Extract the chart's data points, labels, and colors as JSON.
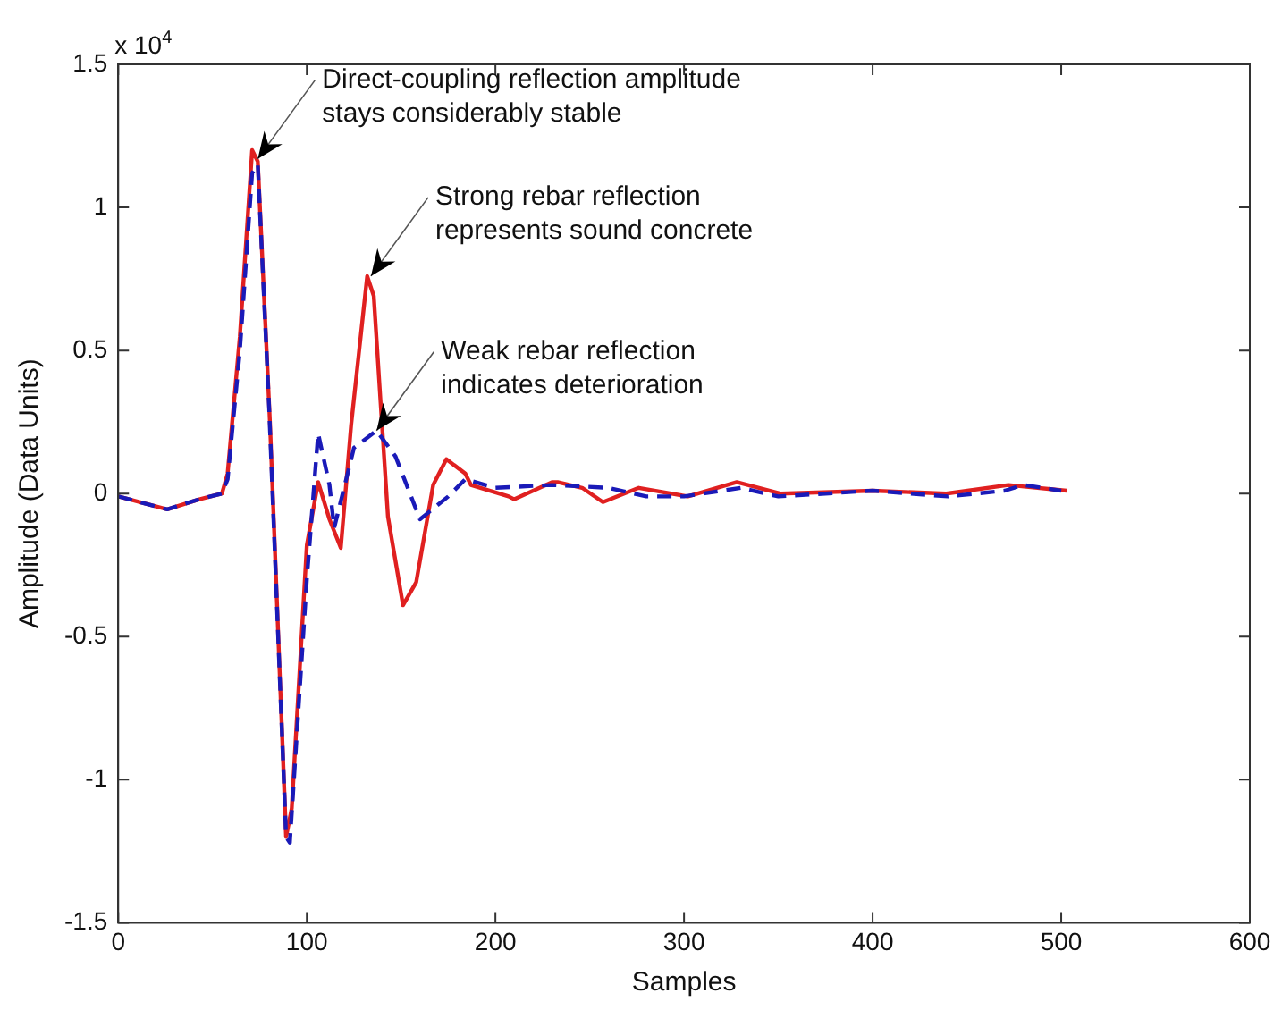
{
  "chart_data": {
    "type": "line",
    "xlabel": "Samples",
    "ylabel": "Amplitude (Data Units)",
    "xlim": [
      0,
      600
    ],
    "xticks": [
      0,
      100,
      200,
      300,
      400,
      500,
      600
    ],
    "ylim": [
      -1.5,
      1.5
    ],
    "yticks": [
      -1.5,
      -1,
      -0.5,
      0,
      0.5,
      1,
      1.5
    ],
    "grid": false,
    "legend": false,
    "marker": "none",
    "series": [
      {
        "color": "#e02020",
        "line_style": "solid",
        "x": [
          0,
          26,
          43,
          55,
          58,
          64.5,
          71,
          74,
          80.5,
          89,
          92,
          100,
          106,
          112,
          118,
          123.5,
          132,
          135.5,
          143,
          151,
          158,
          167,
          174,
          184,
          187,
          207,
          210,
          230,
          233,
          246,
          257,
          276,
          302,
          328,
          351,
          400,
          439,
          472,
          503
        ],
        "values": [
          -0.01,
          -0.055,
          -0.02,
          0,
          0.07,
          0.55,
          1.2,
          1.16,
          0.24,
          -1.2,
          -1.1,
          -0.18,
          0.04,
          -0.09,
          -0.19,
          0.24,
          0.76,
          0.69,
          -0.08,
          -0.39,
          -0.31,
          0.03,
          0.12,
          0.07,
          0.03,
          -0.01,
          -0.02,
          0.04,
          0.04,
          0.02,
          -0.03,
          0.02,
          -0.01,
          0.04,
          0,
          0.01,
          0,
          0.03,
          0.01
        ]
      },
      {
        "color": "#1a1ab8",
        "line_style": "dashed",
        "x": [
          0,
          26,
          43,
          55,
          58,
          64.5,
          71,
          74,
          80,
          89,
          91,
          100,
          106,
          112,
          114.5,
          125,
          137,
          147,
          160,
          175,
          184,
          200,
          230,
          260,
          280,
          300,
          330,
          350,
          400,
          440,
          470,
          480,
          500
        ],
        "values": [
          -0.01,
          -0.055,
          -0.02,
          0,
          0.05,
          0.5,
          1.12,
          1.15,
          0.3,
          -1.2,
          -1.22,
          -0.3,
          0.21,
          0.03,
          -0.12,
          0.16,
          0.22,
          0.13,
          -0.09,
          -0.01,
          0.05,
          0.02,
          0.03,
          0.02,
          -0.01,
          -0.01,
          0.02,
          -0.01,
          0.01,
          -0.01,
          0.01,
          0.03,
          0.01
        ]
      }
    ],
    "annotations": [
      "x 10$^{4}$",
      {
        "text": "Direct-coupling reflection amplitude\nstays considerably stable",
        "x": 74,
        "y": 1.17
      },
      {
        "text": "Strong rebar reflection\nrepresents sound concrete",
        "x": 134,
        "y": 0.76
      },
      {
        "text": "Weak rebar reflection\nindicates deterioration",
        "x": 137,
        "y": 0.22
      }
    ]
  }
}
